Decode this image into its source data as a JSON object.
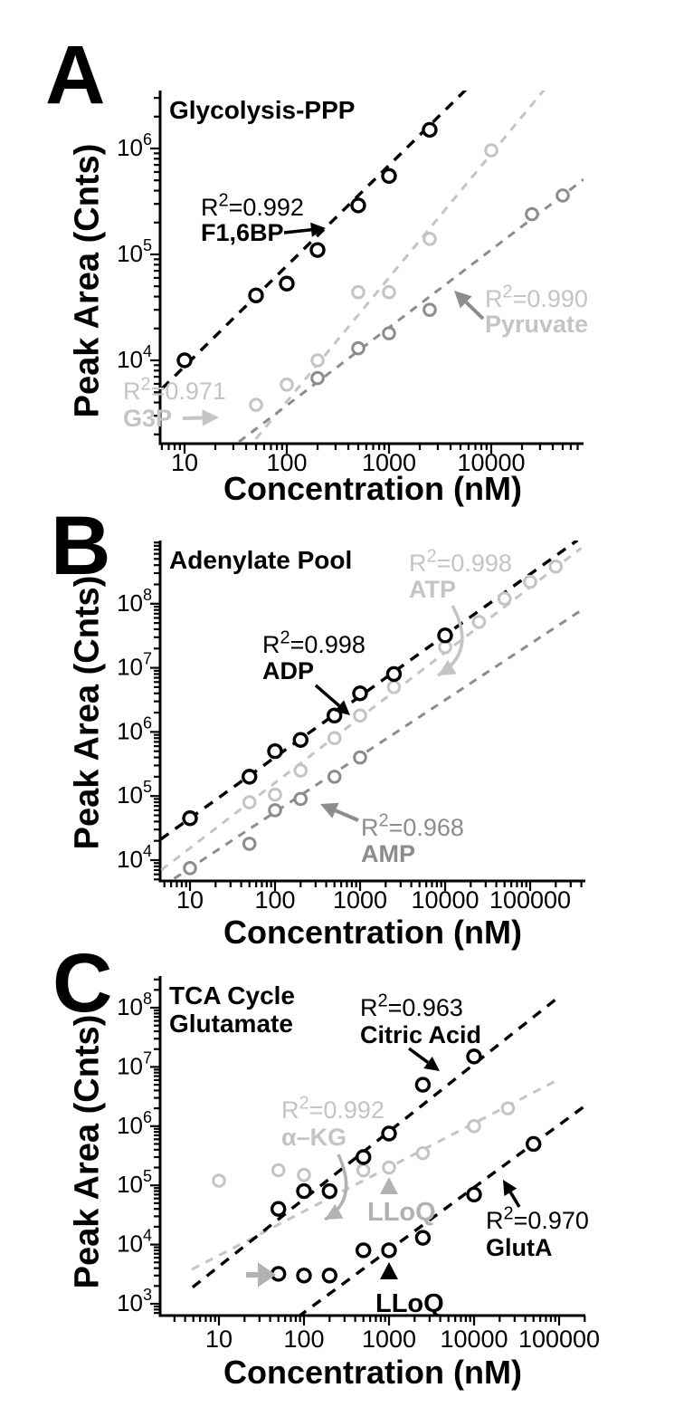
{
  "figure": {
    "x_axis_title": "Concentration (nM)",
    "y_axis_title": "Peak Area (Cnts)",
    "colors": {
      "black": "#000000",
      "light_gray": "#c4c4c4",
      "mid_gray": "#8c8c8c",
      "pale_gray": "#b2b2b2"
    }
  },
  "chart_data": [
    {
      "type": "scatter",
      "panel_letter": "A",
      "title_lines": [
        "Glycolysis-PPP"
      ],
      "xlabel": "Concentration (nM)",
      "ylabel": "Peak Area (Cnts)",
      "x_scale": "log",
      "y_scale": "log",
      "xlim": [
        5.8,
        79000
      ],
      "ylim": [
        1600,
        3300000
      ],
      "x_tick_values": [
        10,
        100,
        1000,
        10000
      ],
      "y_tick_exponents": [
        4,
        5,
        6
      ],
      "series": [
        {
          "name": "G3P",
          "r2": "0.971",
          "color": "#c4c4c4",
          "x": [
            50,
            100,
            200,
            500,
            1000,
            2500,
            10000
          ],
          "y": [
            3800,
            5900,
            10000,
            44000,
            44000,
            140000,
            960000
          ],
          "fit_line": {
            "x1": 40,
            "y1": 1400,
            "x2": 40000,
            "y2": 4500000
          }
        },
        {
          "name": "Pyruvate",
          "r2": "0.990",
          "color": "#8c8c8c",
          "x": [
            200,
            500,
            1000,
            2500,
            25000,
            50000
          ],
          "y": [
            6800,
            13000,
            18000,
            30000,
            240000,
            360000
          ],
          "fit_line": {
            "x1": 34,
            "y1": 1700,
            "x2": 80000,
            "y2": 510000
          }
        },
        {
          "name": "F1,6BP",
          "r2": "0.992",
          "color": "#000000",
          "x": [
            10,
            50,
            100,
            200,
            500,
            1000,
            2500
          ],
          "y": [
            10000,
            41000,
            53000,
            110000,
            290000,
            550000,
            1500000
          ],
          "fit_line": {
            "x1": 6,
            "y1": 5400,
            "x2": 6000,
            "y2": 3800000
          }
        }
      ],
      "annotations": [
        {
          "kind": "label",
          "name": "f16bp-label",
          "x": 222,
          "y": 238,
          "lh": 28,
          "size": 27,
          "color": "#000000",
          "lines": [
            {
              "text": "R²=0.992",
              "bold": false
            },
            {
              "text": "F1,6BP",
              "bold": true
            }
          ]
        },
        {
          "kind": "arrow",
          "name": "f16bp-arrow",
          "x1": 314,
          "y1": 257,
          "x2": 360,
          "y2": 252,
          "color": "#000000",
          "w": 3.5
        },
        {
          "kind": "label",
          "name": "g3p-label",
          "x": 136,
          "y": 441,
          "lh": 30,
          "size": 27,
          "color": "#c4c4c4",
          "lines": [
            {
              "text": "R²=0.971",
              "bold": false
            },
            {
              "text": "G3P",
              "bold": true
            }
          ]
        },
        {
          "kind": "arrow",
          "name": "g3p-arrow",
          "x1": 202,
          "y1": 462,
          "x2": 242,
          "y2": 461,
          "color": "#c4c4c4",
          "w": 4
        },
        {
          "kind": "label",
          "name": "pyruvate-label",
          "x": 536,
          "y": 339,
          "lh": 28,
          "size": 27,
          "color": "#c4c4c4",
          "lines": [
            {
              "text": "R²=0.990",
              "bold": false
            },
            {
              "text": "Pyruvate",
              "bold": true
            }
          ]
        },
        {
          "kind": "arrow",
          "name": "pyruvate-arrow",
          "x1": 534,
          "y1": 352,
          "x2": 502,
          "y2": 321,
          "color": "#8c8c8c",
          "w": 4
        }
      ]
    },
    {
      "type": "scatter",
      "panel_letter": "B",
      "title_lines": [
        "Adenylate Pool"
      ],
      "xlabel": "Concentration (nM)",
      "ylabel": "Peak Area (Cnts)",
      "x_scale": "log",
      "y_scale": "log",
      "xlim": [
        4.5,
        440000
      ],
      "ylim": [
        4700,
        970000000
      ],
      "x_tick_values": [
        10,
        100,
        1000,
        10000,
        100000
      ],
      "y_tick_exponents": [
        4,
        5,
        6,
        7,
        8
      ],
      "series": [
        {
          "name": "ATP",
          "r2": "0.998",
          "color": "#c4c4c4",
          "x": [
            50,
            100,
            200,
            500,
            1000,
            2500,
            10000,
            25000,
            50000,
            100000,
            200000
          ],
          "y": [
            80000,
            105000,
            250000,
            800000,
            1800000,
            5000000,
            21000000,
            52000000,
            120000000,
            220000000,
            380000000
          ],
          "fit_line": {
            "x1": 4.6,
            "y1": 7000,
            "x2": 400000,
            "y2": 740000000
          }
        },
        {
          "name": "AMP",
          "r2": "0.968",
          "color": "#8c8c8c",
          "x": [
            10,
            50,
            100,
            200,
            500,
            1000
          ],
          "y": [
            7500,
            18000,
            60000,
            90000,
            200000,
            400000
          ],
          "fit_line": {
            "x1": 4.6,
            "y1": 3800,
            "x2": 440000,
            "y2": 86000000
          }
        },
        {
          "name": "ADP",
          "r2": "0.998",
          "color": "#000000",
          "x": [
            10,
            50,
            100,
            200,
            500,
            1000,
            2500,
            10000
          ],
          "y": [
            45000,
            200000,
            500000,
            750000,
            1800000,
            4000000,
            8000000,
            32000000
          ],
          "fit_line": {
            "x1": 4.5,
            "y1": 21000,
            "x2": 360000,
            "y2": 980000000
          }
        }
      ],
      "annotations": [
        {
          "kind": "label",
          "name": "atp-label",
          "x": 452,
          "y": 631,
          "lh": 29,
          "size": 27,
          "color": "#c4c4c4",
          "lines": [
            {
              "text": "R²=0.998",
              "bold": false
            },
            {
              "text": "ATP",
              "bold": true
            }
          ]
        },
        {
          "kind": "curve",
          "name": "atp-arrow",
          "x1": 500,
          "y1": 669,
          "cx": 528,
          "cy": 720,
          "x2": 484,
          "y2": 746,
          "color": "#c4c4c4",
          "w": 3.5
        },
        {
          "kind": "label",
          "name": "adp-label",
          "x": 290,
          "y": 721,
          "lh": 29,
          "size": 27,
          "color": "#000000",
          "lines": [
            {
              "text": "R²=0.998",
              "bold": false
            },
            {
              "text": "ADP",
              "bold": true
            }
          ]
        },
        {
          "kind": "arrow",
          "name": "adp-arrow",
          "x1": 349,
          "y1": 757,
          "x2": 387,
          "y2": 790,
          "color": "#000000",
          "w": 3.5
        },
        {
          "kind": "label",
          "name": "amp-label",
          "x": 399,
          "y": 923,
          "lh": 29,
          "size": 27,
          "color": "#8c8c8c",
          "lines": [
            {
              "text": "R²=0.968",
              "bold": false
            },
            {
              "text": "AMP",
              "bold": true
            }
          ]
        },
        {
          "kind": "arrow",
          "name": "amp-arrow",
          "x1": 396,
          "y1": 906,
          "x2": 354,
          "y2": 888,
          "color": "#8c8c8c",
          "w": 4
        }
      ]
    },
    {
      "type": "scatter",
      "panel_letter": "C",
      "title_lines": [
        "TCA Cycle",
        "Glutamate"
      ],
      "xlabel": "Concentration (nM)",
      "ylabel": "Peak Area (Cnts)",
      "x_scale": "log",
      "y_scale": "log",
      "xlim": [
        2.05,
        205000
      ],
      "ylim": [
        630,
        340000000
      ],
      "x_tick_values": [
        10,
        100,
        1000,
        10000,
        100000
      ],
      "y_tick_exponents": [
        3,
        4,
        5,
        6,
        7,
        8
      ],
      "series": [
        {
          "name": "α–KG",
          "r2": "0.992",
          "color": "#c4c4c4",
          "x": [
            10,
            50,
            100,
            500,
            1000,
            2500,
            10000,
            25000
          ],
          "y": [
            120000,
            180000,
            150000,
            180000,
            200000,
            350000,
            1000000,
            2000000
          ],
          "fit_line": {
            "x1": 4.8,
            "y1": 3800,
            "x2": 100000,
            "y2": 6200000
          }
        },
        {
          "name": "GlutA",
          "r2": "0.970",
          "color": "#000000",
          "x": [
            500,
            1000,
            2500,
            10000,
            50000
          ],
          "y": [
            8000,
            8000,
            13000,
            70000,
            500000
          ],
          "fit_line": {
            "x1": 85,
            "y1": 600,
            "x2": 210000,
            "y2": 2300000
          }
        },
        {
          "name": "GlutA below LLoQ",
          "r2": null,
          "color": "#000000",
          "x": [
            50,
            100,
            200
          ],
          "y": [
            3200,
            3000,
            3000
          ],
          "fit_line": null
        },
        {
          "name": "Citric Acid",
          "r2": "0.963",
          "color": "#000000",
          "x": [
            50,
            100,
            200,
            500,
            1000,
            2500,
            10000
          ],
          "y": [
            40000,
            80000,
            80000,
            300000,
            750000,
            5000000,
            15000000
          ],
          "fit_line": {
            "x1": 4.9,
            "y1": 1900,
            "x2": 98000,
            "y2": 150000000
          }
        }
      ],
      "annotations": [
        {
          "kind": "label",
          "name": "citric-acid-label",
          "x": 398,
          "y": 1122,
          "lh": 30,
          "size": 27,
          "color": "#000000",
          "lines": [
            {
              "text": "R²=0.963",
              "bold": false
            },
            {
              "text": "Citric Acid",
              "bold": true
            }
          ]
        },
        {
          "kind": "arrow",
          "name": "citric-acid-arrow",
          "x1": 452,
          "y1": 1158,
          "x2": 486,
          "y2": 1183,
          "color": "#000000",
          "w": 3.5
        },
        {
          "kind": "label",
          "name": "akg-label",
          "x": 311,
          "y": 1235,
          "lh": 30,
          "size": 27,
          "color": "#c4c4c4",
          "lines": [
            {
              "text": "R²=0.992",
              "bold": false
            },
            {
              "text": "α–KG",
              "bold": true
            }
          ]
        },
        {
          "kind": "curve",
          "name": "akg-arrow",
          "x1": 374,
          "y1": 1275,
          "cx": 397,
          "cy": 1325,
          "x2": 359,
          "y2": 1347,
          "color": "#b2b2b2",
          "w": 3.5
        },
        {
          "kind": "triangle",
          "name": "lloq-marker-akg",
          "x": 430,
          "y": 1310,
          "color": "#b2b2b2"
        },
        {
          "kind": "label",
          "name": "lloq-label-akg",
          "x": 406,
          "y": 1348,
          "lh": 30,
          "size": 29,
          "color": "#b2b2b2",
          "lines": [
            {
              "text": "LLoQ",
              "bold": true
            }
          ]
        },
        {
          "kind": "label",
          "name": "gluta-label",
          "x": 537,
          "y": 1357,
          "lh": 30,
          "size": 27,
          "color": "#000000",
          "lines": [
            {
              "text": "R²=0.970",
              "bold": false
            },
            {
              "text": "GlutA",
              "bold": true
            }
          ]
        },
        {
          "kind": "arrow",
          "name": "gluta-arrow",
          "x1": 574,
          "y1": 1333,
          "x2": 556,
          "y2": 1303,
          "color": "#000000",
          "w": 3.5
        },
        {
          "kind": "triangle",
          "name": "lloq-marker-gluta",
          "x": 430,
          "y": 1404,
          "color": "#000000"
        },
        {
          "kind": "label",
          "name": "lloq-label-gluta",
          "x": 415,
          "y": 1449,
          "lh": 30,
          "size": 29,
          "color": "#000000",
          "lines": [
            {
              "text": "LLoQ",
              "bold": true
            }
          ]
        },
        {
          "kind": "arrow",
          "name": "below-lloq-arrow",
          "x1": 272,
          "y1": 1408,
          "x2": 305,
          "y2": 1408,
          "color": "#b2b2b2",
          "w": 6
        }
      ]
    }
  ]
}
